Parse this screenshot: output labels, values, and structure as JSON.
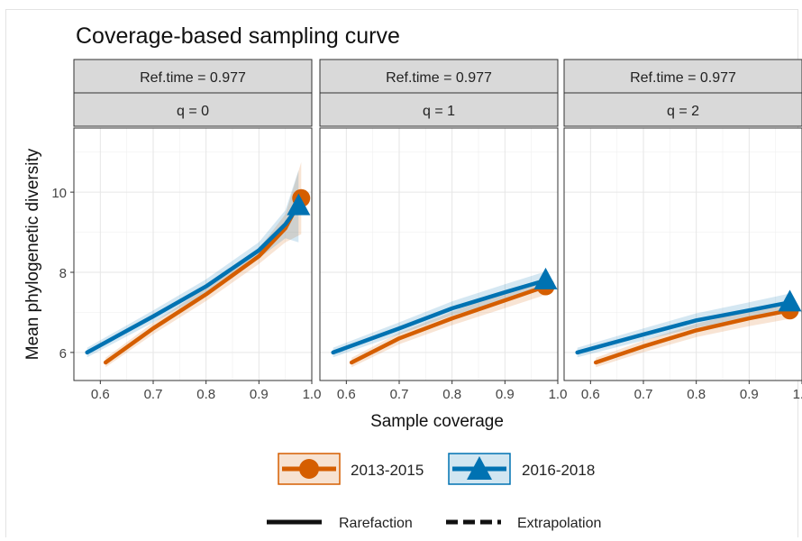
{
  "chart_data": {
    "type": "line",
    "title": "Coverage-based sampling curve",
    "xlabel": "Sample coverage",
    "ylabel": "Mean phylogenetic diversity",
    "xlim": [
      0.55,
      1.0
    ],
    "ylim": [
      5.3,
      11.6
    ],
    "xticks": [
      "0.6",
      "0.7",
      "0.8",
      "0.9",
      "1.0"
    ],
    "yticks": [
      "6",
      "8",
      "10"
    ],
    "grid": true,
    "legend_position": "bottom",
    "line_types": [
      "Rarefaction",
      "Extrapolation"
    ],
    "colors": {
      "2013-2015": "#d55e00",
      "2016-2018": "#0072b2"
    },
    "series": [
      {
        "name": "2013-2015",
        "marker": "circle"
      },
      {
        "name": "2016-2018",
        "marker": "triangle"
      }
    ],
    "panels": [
      {
        "strip_top": "Ref.time = 0.977",
        "strip_bottom": "q = 0",
        "lines": [
          {
            "series": "2013-2015",
            "x": [
              0.61,
              0.7,
              0.8,
              0.9,
              0.95,
              0.98
            ],
            "y": [
              5.75,
              6.6,
              7.45,
              8.4,
              9.1,
              9.85
            ]
          },
          {
            "series": "2016-2018",
            "x": [
              0.575,
              0.7,
              0.8,
              0.9,
              0.95,
              0.975
            ],
            "y": [
              6.0,
              6.9,
              7.65,
              8.55,
              9.2,
              9.65
            ]
          }
        ],
        "points": [
          {
            "series": "2013-2015",
            "x": 0.98,
            "y": 9.85
          },
          {
            "series": "2016-2018",
            "x": 0.975,
            "y": 9.65
          }
        ]
      },
      {
        "strip_top": "Ref.time = 0.977",
        "strip_bottom": "q = 1",
        "lines": [
          {
            "series": "2013-2015",
            "x": [
              0.61,
              0.7,
              0.8,
              0.9,
              0.977
            ],
            "y": [
              5.75,
              6.35,
              6.85,
              7.3,
              7.65
            ]
          },
          {
            "series": "2016-2018",
            "x": [
              0.575,
              0.7,
              0.8,
              0.9,
              0.977
            ],
            "y": [
              6.0,
              6.6,
              7.1,
              7.5,
              7.8
            ]
          }
        ],
        "points": [
          {
            "series": "2013-2015",
            "x": 0.977,
            "y": 7.65
          },
          {
            "series": "2016-2018",
            "x": 0.977,
            "y": 7.8
          }
        ]
      },
      {
        "strip_top": "Ref.time = 0.977",
        "strip_bottom": "q = 2",
        "lines": [
          {
            "series": "2013-2015",
            "x": [
              0.61,
              0.7,
              0.8,
              0.9,
              0.977
            ],
            "y": [
              5.75,
              6.15,
              6.55,
              6.85,
              7.05
            ]
          },
          {
            "series": "2016-2018",
            "x": [
              0.575,
              0.7,
              0.8,
              0.9,
              0.977
            ],
            "y": [
              6.0,
              6.45,
              6.8,
              7.05,
              7.25
            ]
          }
        ],
        "points": [
          {
            "series": "2013-2015",
            "x": 0.977,
            "y": 7.05
          },
          {
            "series": "2016-2018",
            "x": 0.977,
            "y": 7.25
          }
        ]
      }
    ]
  }
}
